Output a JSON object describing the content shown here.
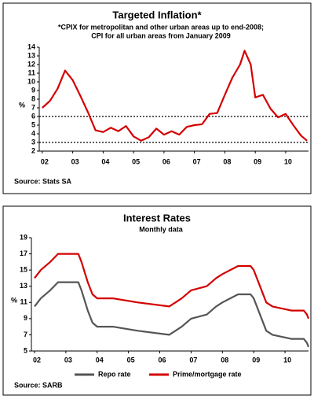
{
  "chart_data": [
    {
      "type": "line",
      "title": "Targeted Inflation*",
      "subtitle_lines": [
        "*CPIX for metropolitan and other urban areas up to end-2008;",
        "CPI for all urban areas from January 2009"
      ],
      "ylabel": "%",
      "source": "Source: Stats SA",
      "x": [
        2002.0,
        2002.25,
        2002.5,
        2002.75,
        2003.0,
        2003.25,
        2003.5,
        2003.75,
        2004.0,
        2004.25,
        2004.5,
        2004.75,
        2005.0,
        2005.25,
        2005.5,
        2005.75,
        2006.0,
        2006.25,
        2006.5,
        2006.75,
        2007.0,
        2007.25,
        2007.5,
        2007.75,
        2008.0,
        2008.25,
        2008.5,
        2008.65,
        2008.85,
        2009.0,
        2009.25,
        2009.5,
        2009.75,
        2010.0,
        2010.25,
        2010.5,
        2010.7
      ],
      "series": [
        {
          "color": "#d40000",
          "values": [
            7.0,
            7.8,
            9.2,
            11.3,
            10.2,
            8.4,
            6.5,
            4.4,
            4.2,
            4.7,
            4.3,
            4.9,
            3.7,
            3.2,
            3.6,
            4.6,
            3.9,
            4.3,
            3.9,
            4.8,
            5.0,
            5.1,
            6.3,
            6.4,
            8.5,
            10.5,
            12.0,
            13.6,
            12.0,
            8.2,
            8.5,
            6.9,
            5.9,
            6.3,
            5.0,
            3.8,
            3.2
          ]
        }
      ],
      "reference_lines": [
        3,
        6
      ],
      "xlim": [
        2001.9,
        2010.75
      ],
      "xticks": [
        {
          "value": 2002,
          "label": "02"
        },
        {
          "value": 2003,
          "label": "03"
        },
        {
          "value": 2004,
          "label": "04"
        },
        {
          "value": 2005,
          "label": "05"
        },
        {
          "value": 2006,
          "label": "06"
        },
        {
          "value": 2007,
          "label": "07"
        },
        {
          "value": 2008,
          "label": "08"
        },
        {
          "value": 2009,
          "label": "09"
        },
        {
          "value": 2010,
          "label": "10"
        }
      ],
      "ylim": [
        2,
        14
      ],
      "yticks": [
        2,
        3,
        4,
        5,
        6,
        7,
        8,
        9,
        10,
        11,
        12,
        13,
        14
      ]
    },
    {
      "type": "line",
      "title": "Interest Rates",
      "subtitle_lines": [
        "Monthly data"
      ],
      "ylabel": "%",
      "source": "Source: SARB",
      "legend": "bottom",
      "x": [
        2002.0,
        2002.2,
        2002.5,
        2002.75,
        2003.4,
        2003.5,
        2003.7,
        2003.85,
        2004.0,
        2004.5,
        2005.3,
        2006.3,
        2006.5,
        2006.7,
        2007.0,
        2007.5,
        2007.8,
        2008.0,
        2008.5,
        2008.9,
        2009.0,
        2009.2,
        2009.4,
        2009.6,
        2010.2,
        2010.6,
        2010.7,
        2010.75
      ],
      "series": [
        {
          "name": "Repo rate",
          "color": "#555555",
          "values": [
            10.5,
            11.5,
            12.5,
            13.5,
            13.5,
            12.5,
            10,
            8.5,
            8.0,
            8.0,
            7.5,
            7.0,
            7.5,
            8.0,
            9.0,
            9.5,
            10.5,
            11.0,
            12.0,
            12.0,
            11.5,
            9.5,
            7.5,
            7.0,
            6.5,
            6.5,
            6.0,
            5.5
          ]
        },
        {
          "name": "Prime/mortgage rate",
          "color": "#d40000",
          "values": [
            14,
            15,
            16,
            17,
            17,
            16,
            13.5,
            12,
            11.5,
            11.5,
            11,
            10.5,
            11,
            11.5,
            12.5,
            13,
            14,
            14.5,
            15.5,
            15.5,
            15,
            13,
            11,
            10.5,
            10,
            10,
            9.5,
            9
          ]
        }
      ],
      "xlim": [
        2001.9,
        2010.75
      ],
      "xticks": [
        {
          "value": 2002,
          "label": "02"
        },
        {
          "value": 2003,
          "label": "03"
        },
        {
          "value": 2004,
          "label": "04"
        },
        {
          "value": 2005,
          "label": "05"
        },
        {
          "value": 2006,
          "label": "06"
        },
        {
          "value": 2007,
          "label": "07"
        },
        {
          "value": 2008,
          "label": "08"
        },
        {
          "value": 2009,
          "label": "09"
        },
        {
          "value": 2010,
          "label": "10"
        }
      ],
      "ylim": [
        5,
        19
      ],
      "yticks": [
        5,
        7,
        9,
        11,
        13,
        15,
        17,
        19
      ]
    }
  ]
}
